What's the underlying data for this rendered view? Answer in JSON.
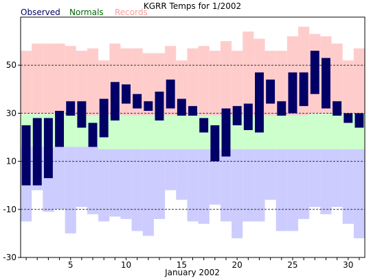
{
  "chart_data": {
    "type": "bar",
    "title": "KGRR Temps for 1/2002",
    "xlabel": "January 2002",
    "ylabel": "",
    "xlim": [
      0.5,
      31.5
    ],
    "ylim": [
      -30,
      70
    ],
    "y_ticks": [
      -30,
      -10,
      10,
      30,
      50
    ],
    "x_ticks": [
      5,
      10,
      15,
      20,
      25,
      30
    ],
    "grid_y_dashed": [
      -10,
      10,
      30,
      50
    ],
    "legend_placement": "top-left",
    "days": [
      1,
      2,
      3,
      4,
      5,
      6,
      7,
      8,
      9,
      10,
      11,
      12,
      13,
      14,
      15,
      16,
      17,
      18,
      19,
      20,
      21,
      22,
      23,
      24,
      25,
      26,
      27,
      28,
      29,
      30,
      31
    ],
    "series": [
      {
        "name": "Records",
        "color": "#ffcccc",
        "record_high": [
          56,
          59,
          59,
          59,
          58,
          56,
          57,
          52,
          59,
          57,
          57,
          55,
          55,
          58,
          52,
          57,
          58,
          56,
          60,
          56,
          64,
          61,
          56,
          56,
          62,
          66,
          63,
          62,
          59,
          52,
          57
        ],
        "record_low": [
          -15,
          -2,
          -11,
          -10,
          -20,
          -9,
          -12,
          -15,
          -13,
          -14,
          -19,
          -21,
          -14,
          -2,
          -6,
          -15,
          -16,
          -8,
          -15,
          -22,
          -15,
          -15,
          -6,
          -19,
          -19,
          -14,
          -9,
          -12,
          -9,
          -16,
          -22
        ]
      },
      {
        "name": "Normals",
        "color": "#ccffcc",
        "normal_high": [
          30,
          30,
          30,
          30,
          29,
          29,
          29,
          29,
          29,
          29,
          29,
          29,
          29,
          29,
          29,
          29,
          29,
          29,
          29,
          29,
          29,
          29,
          29,
          29,
          29,
          29,
          30,
          30,
          30,
          30,
          30
        ],
        "normal_low": [
          16,
          16,
          16,
          16,
          16,
          16,
          16,
          15,
          15,
          15,
          15,
          15,
          15,
          15,
          15,
          15,
          15,
          15,
          15,
          15,
          15,
          15,
          15,
          15,
          15,
          15,
          15,
          15,
          15,
          15,
          15
        ]
      },
      {
        "name": "Observed",
        "color": "#000066",
        "high": [
          25,
          28,
          28,
          31,
          35,
          35,
          26,
          36,
          43,
          42,
          38,
          35,
          39,
          44,
          36,
          33,
          28,
          25,
          32,
          33,
          34,
          47,
          44,
          35,
          47,
          47,
          56,
          53,
          35,
          30,
          30
        ],
        "low": [
          0,
          0,
          3,
          16,
          29,
          24,
          16,
          20,
          27,
          34,
          32,
          31,
          27,
          32,
          29,
          29,
          22,
          10,
          12,
          25,
          23,
          22,
          34,
          29,
          30,
          33,
          38,
          32,
          29,
          26,
          24
        ]
      }
    ]
  }
}
